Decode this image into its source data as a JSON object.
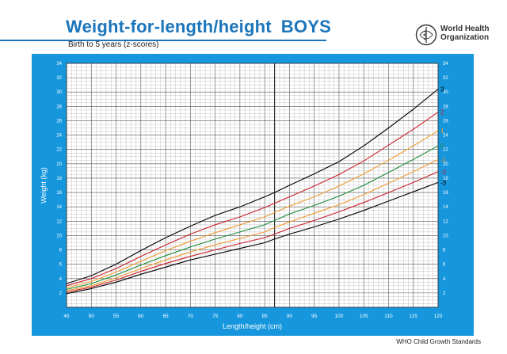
{
  "header": {
    "title_main": "Weight-for-length/height",
    "title_sex": "BOYS",
    "subtitle": "Birth to 5 years (z-scores)"
  },
  "logo": {
    "line1": "World Health",
    "line2": "Organization",
    "icon": "who-emblem-icon"
  },
  "footer": "WHO Child Growth Standards",
  "colors": {
    "panel": "#1596dd",
    "plot_bg": "#ffffff",
    "grid": "#aaaaaa",
    "z3": "#000000",
    "z2": "#cc1f2a",
    "z1": "#f29a2e",
    "z0": "#1e8c3a"
  },
  "chart_data": {
    "type": "line",
    "xlabel": "Length/height (cm)",
    "ylabel": "Weight (kg)",
    "xlim": [
      45,
      120
    ],
    "ylim": [
      0,
      34
    ],
    "x_ticks": [
      45,
      50,
      55,
      60,
      65,
      70,
      75,
      80,
      85,
      90,
      95,
      100,
      105,
      110,
      115,
      120
    ],
    "y_ticks": [
      2,
      4,
      6,
      8,
      10,
      12,
      14,
      16,
      18,
      20,
      22,
      24,
      26,
      28,
      30,
      32,
      34
    ],
    "grid": true,
    "transition_x": 87,
    "x": [
      45,
      50,
      55,
      60,
      65,
      70,
      75,
      80,
      85,
      87,
      90,
      95,
      100,
      105,
      110,
      115,
      120
    ],
    "series": [
      {
        "name": "3",
        "color_key": "z3",
        "values": [
          3.3,
          4.4,
          6.0,
          7.9,
          9.7,
          11.3,
          12.8,
          14.0,
          15.4,
          16.0,
          17.0,
          18.6,
          20.3,
          22.5,
          25.0,
          27.6,
          30.4
        ]
      },
      {
        "name": "2",
        "color_key": "z2",
        "values": [
          3.0,
          4.0,
          5.4,
          7.1,
          8.7,
          10.2,
          11.5,
          12.6,
          13.9,
          14.5,
          15.4,
          16.9,
          18.5,
          20.4,
          22.6,
          24.8,
          27.2
        ]
      },
      {
        "name": "1",
        "color_key": "z1",
        "values": [
          2.7,
          3.6,
          4.9,
          6.4,
          7.9,
          9.2,
          10.4,
          11.5,
          12.6,
          13.2,
          14.1,
          15.4,
          16.9,
          18.6,
          20.5,
          22.5,
          24.6
        ]
      },
      {
        "name": "0",
        "color_key": "z0",
        "values": [
          2.5,
          3.3,
          4.5,
          5.9,
          7.2,
          8.4,
          9.5,
          10.5,
          11.5,
          12.1,
          13.0,
          14.2,
          15.5,
          17.0,
          18.8,
          20.6,
          22.5
        ]
      },
      {
        "name": "-1",
        "color_key": "z1",
        "values": [
          2.3,
          3.0,
          4.1,
          5.4,
          6.6,
          7.7,
          8.7,
          9.6,
          10.5,
          11.1,
          11.9,
          13.1,
          14.3,
          15.7,
          17.3,
          18.9,
          20.6
        ]
      },
      {
        "name": "-2",
        "color_key": "z2",
        "values": [
          2.1,
          2.8,
          3.8,
          5.0,
          6.1,
          7.1,
          8.0,
          8.9,
          9.7,
          10.2,
          11.0,
          12.1,
          13.3,
          14.6,
          16.0,
          17.4,
          18.9
        ]
      },
      {
        "name": "-3",
        "color_key": "z3",
        "values": [
          1.9,
          2.6,
          3.5,
          4.6,
          5.6,
          6.6,
          7.4,
          8.2,
          9.0,
          9.5,
          10.2,
          11.2,
          12.3,
          13.5,
          14.8,
          16.1,
          17.4
        ]
      }
    ]
  }
}
